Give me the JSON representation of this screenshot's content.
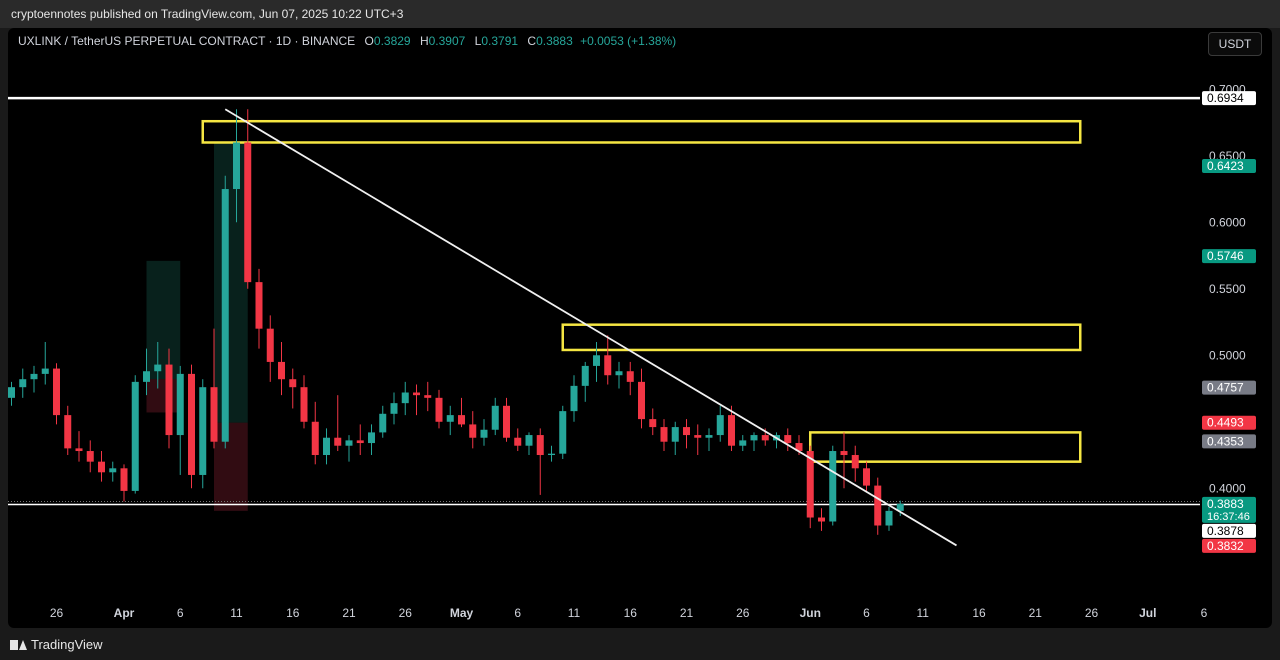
{
  "header": {
    "publish_text": "cryptoennotes published on TradingView.com, Jun 07, 2025 10:22 UTC+3"
  },
  "symbol": {
    "title": "UXLINK / TetherUS PERPETUAL CONTRACT · 1D · BINANCE",
    "o_label": "O",
    "o_value": "0.3829",
    "h_label": "H",
    "h_value": "0.3907",
    "l_label": "L",
    "l_value": "0.3791",
    "c_label": "C",
    "c_value": "0.3883",
    "change": "+0.0053 (+1.38%)"
  },
  "currency_button": "USDT",
  "footer": {
    "brand": "TradingView"
  },
  "colors": {
    "up": "#26a69a",
    "down": "#f23645",
    "zone": "#f5e642",
    "line": "#ffffff",
    "bg": "#000000"
  },
  "chart_data": {
    "type": "candlestick",
    "ylim": [
      0.325,
      0.71
    ],
    "y_axis_ticks": [
      "0.7000",
      "0.6500",
      "0.6000",
      "0.5500",
      "0.5000",
      "0.4000"
    ],
    "x_axis_ticks": [
      "26",
      "Apr",
      "6",
      "11",
      "16",
      "21",
      "26",
      "May",
      "6",
      "11",
      "16",
      "21",
      "26",
      "Jun",
      "6",
      "11",
      "16",
      "21",
      "26",
      "Jul",
      "6"
    ],
    "price_labels": [
      {
        "value": 0.6934,
        "text": "0.6934",
        "style": "white"
      },
      {
        "value": 0.6423,
        "text": "0.6423",
        "style": "green"
      },
      {
        "value": 0.5746,
        "text": "0.5746",
        "style": "green"
      },
      {
        "value": 0.4757,
        "text": "0.4757",
        "style": "gray"
      },
      {
        "value": 0.4493,
        "text": "0.4493",
        "style": "red"
      },
      {
        "value": 0.4353,
        "text": "0.4353",
        "style": "gray"
      },
      {
        "value": 0.3883,
        "text": "0.3883",
        "style": "green",
        "sub": "16:37:46"
      },
      {
        "value": 0.3878,
        "text": "0.3878",
        "style": "white"
      },
      {
        "value": 0.3832,
        "text": "0.3832",
        "style": "red"
      }
    ],
    "horizontal_lines": [
      0.6934,
      0.3878
    ],
    "trendline": {
      "from": [
        "Apr 10",
        0.685
      ],
      "to": [
        "Jun 14",
        0.357
      ]
    },
    "zones": [
      {
        "from": "Apr 8",
        "to": "Jun 25",
        "top": 0.676,
        "bottom": 0.66
      },
      {
        "from": "May 10",
        "to": "Jun 25",
        "top": 0.523,
        "bottom": 0.504
      },
      {
        "from": "Jun 1",
        "to": "Jun 25",
        "top": 0.442,
        "bottom": 0.42
      }
    ],
    "position_boxes": [
      {
        "from": "Apr 3",
        "to": "Apr 6",
        "top": 0.571,
        "mid": 0.482,
        "bottom": 0.457
      },
      {
        "from": "Apr 9",
        "to": "Apr 12",
        "top": 0.66,
        "mid": 0.4493,
        "bottom": 0.383
      }
    ],
    "candles": [
      {
        "o": 0.468,
        "h": 0.48,
        "l": 0.462,
        "c": 0.476
      },
      {
        "o": 0.476,
        "h": 0.49,
        "l": 0.468,
        "c": 0.482
      },
      {
        "o": 0.482,
        "h": 0.492,
        "l": 0.472,
        "c": 0.486
      },
      {
        "o": 0.486,
        "h": 0.51,
        "l": 0.478,
        "c": 0.49
      },
      {
        "o": 0.49,
        "h": 0.494,
        "l": 0.448,
        "c": 0.455
      },
      {
        "o": 0.455,
        "h": 0.462,
        "l": 0.425,
        "c": 0.43
      },
      {
        "o": 0.43,
        "h": 0.443,
        "l": 0.42,
        "c": 0.428
      },
      {
        "o": 0.428,
        "h": 0.436,
        "l": 0.412,
        "c": 0.42
      },
      {
        "o": 0.42,
        "h": 0.428,
        "l": 0.405,
        "c": 0.412
      },
      {
        "o": 0.412,
        "h": 0.42,
        "l": 0.405,
        "c": 0.415
      },
      {
        "o": 0.415,
        "h": 0.418,
        "l": 0.39,
        "c": 0.398
      },
      {
        "o": 0.398,
        "h": 0.485,
        "l": 0.396,
        "c": 0.48
      },
      {
        "o": 0.48,
        "h": 0.505,
        "l": 0.47,
        "c": 0.488
      },
      {
        "o": 0.488,
        "h": 0.51,
        "l": 0.475,
        "c": 0.493
      },
      {
        "o": 0.493,
        "h": 0.505,
        "l": 0.43,
        "c": 0.44
      },
      {
        "o": 0.44,
        "h": 0.492,
        "l": 0.41,
        "c": 0.486
      },
      {
        "o": 0.486,
        "h": 0.493,
        "l": 0.4,
        "c": 0.41
      },
      {
        "o": 0.41,
        "h": 0.482,
        "l": 0.4,
        "c": 0.476
      },
      {
        "o": 0.476,
        "h": 0.52,
        "l": 0.43,
        "c": 0.435
      },
      {
        "o": 0.435,
        "h": 0.635,
        "l": 0.43,
        "c": 0.625
      },
      {
        "o": 0.625,
        "h": 0.685,
        "l": 0.6,
        "c": 0.66
      },
      {
        "o": 0.66,
        "h": 0.685,
        "l": 0.55,
        "c": 0.555
      },
      {
        "o": 0.555,
        "h": 0.565,
        "l": 0.505,
        "c": 0.52
      },
      {
        "o": 0.52,
        "h": 0.53,
        "l": 0.48,
        "c": 0.495
      },
      {
        "o": 0.495,
        "h": 0.51,
        "l": 0.47,
        "c": 0.482
      },
      {
        "o": 0.482,
        "h": 0.49,
        "l": 0.46,
        "c": 0.476
      },
      {
        "o": 0.476,
        "h": 0.485,
        "l": 0.445,
        "c": 0.45
      },
      {
        "o": 0.45,
        "h": 0.465,
        "l": 0.418,
        "c": 0.425
      },
      {
        "o": 0.425,
        "h": 0.445,
        "l": 0.418,
        "c": 0.438
      },
      {
        "o": 0.438,
        "h": 0.47,
        "l": 0.428,
        "c": 0.432
      },
      {
        "o": 0.432,
        "h": 0.44,
        "l": 0.42,
        "c": 0.436
      },
      {
        "o": 0.436,
        "h": 0.448,
        "l": 0.425,
        "c": 0.434
      },
      {
        "o": 0.434,
        "h": 0.448,
        "l": 0.425,
        "c": 0.442
      },
      {
        "o": 0.442,
        "h": 0.462,
        "l": 0.438,
        "c": 0.456
      },
      {
        "o": 0.456,
        "h": 0.472,
        "l": 0.448,
        "c": 0.464
      },
      {
        "o": 0.464,
        "h": 0.48,
        "l": 0.455,
        "c": 0.472
      },
      {
        "o": 0.472,
        "h": 0.478,
        "l": 0.455,
        "c": 0.47
      },
      {
        "o": 0.47,
        "h": 0.48,
        "l": 0.458,
        "c": 0.468
      },
      {
        "o": 0.468,
        "h": 0.474,
        "l": 0.445,
        "c": 0.45
      },
      {
        "o": 0.45,
        "h": 0.462,
        "l": 0.44,
        "c": 0.455
      },
      {
        "o": 0.455,
        "h": 0.468,
        "l": 0.446,
        "c": 0.448
      },
      {
        "o": 0.448,
        "h": 0.458,
        "l": 0.43,
        "c": 0.438
      },
      {
        "o": 0.438,
        "h": 0.452,
        "l": 0.432,
        "c": 0.444
      },
      {
        "o": 0.444,
        "h": 0.468,
        "l": 0.44,
        "c": 0.462
      },
      {
        "o": 0.462,
        "h": 0.468,
        "l": 0.435,
        "c": 0.438
      },
      {
        "o": 0.438,
        "h": 0.445,
        "l": 0.428,
        "c": 0.432
      },
      {
        "o": 0.432,
        "h": 0.442,
        "l": 0.425,
        "c": 0.44
      },
      {
        "o": 0.44,
        "h": 0.445,
        "l": 0.395,
        "c": 0.425
      },
      {
        "o": 0.425,
        "h": 0.432,
        "l": 0.42,
        "c": 0.426
      },
      {
        "o": 0.426,
        "h": 0.462,
        "l": 0.422,
        "c": 0.458
      },
      {
        "o": 0.458,
        "h": 0.485,
        "l": 0.45,
        "c": 0.477
      },
      {
        "o": 0.477,
        "h": 0.495,
        "l": 0.465,
        "c": 0.492
      },
      {
        "o": 0.492,
        "h": 0.51,
        "l": 0.48,
        "c": 0.5
      },
      {
        "o": 0.5,
        "h": 0.515,
        "l": 0.478,
        "c": 0.485
      },
      {
        "o": 0.485,
        "h": 0.495,
        "l": 0.475,
        "c": 0.488
      },
      {
        "o": 0.488,
        "h": 0.495,
        "l": 0.47,
        "c": 0.48
      },
      {
        "o": 0.48,
        "h": 0.49,
        "l": 0.445,
        "c": 0.452
      },
      {
        "o": 0.452,
        "h": 0.46,
        "l": 0.44,
        "c": 0.446
      },
      {
        "o": 0.446,
        "h": 0.452,
        "l": 0.428,
        "c": 0.435
      },
      {
        "o": 0.435,
        "h": 0.45,
        "l": 0.425,
        "c": 0.446
      },
      {
        "o": 0.446,
        "h": 0.452,
        "l": 0.43,
        "c": 0.44
      },
      {
        "o": 0.44,
        "h": 0.448,
        "l": 0.425,
        "c": 0.438
      },
      {
        "o": 0.438,
        "h": 0.445,
        "l": 0.428,
        "c": 0.44
      },
      {
        "o": 0.44,
        "h": 0.462,
        "l": 0.435,
        "c": 0.455
      },
      {
        "o": 0.455,
        "h": 0.462,
        "l": 0.428,
        "c": 0.432
      },
      {
        "o": 0.432,
        "h": 0.44,
        "l": 0.428,
        "c": 0.436
      },
      {
        "o": 0.436,
        "h": 0.442,
        "l": 0.428,
        "c": 0.44
      },
      {
        "o": 0.44,
        "h": 0.445,
        "l": 0.432,
        "c": 0.436
      },
      {
        "o": 0.436,
        "h": 0.442,
        "l": 0.43,
        "c": 0.44
      },
      {
        "o": 0.44,
        "h": 0.445,
        "l": 0.428,
        "c": 0.434
      },
      {
        "o": 0.434,
        "h": 0.44,
        "l": 0.425,
        "c": 0.428
      },
      {
        "o": 0.428,
        "h": 0.432,
        "l": 0.37,
        "c": 0.378
      },
      {
        "o": 0.378,
        "h": 0.385,
        "l": 0.368,
        "c": 0.375
      },
      {
        "o": 0.375,
        "h": 0.432,
        "l": 0.372,
        "c": 0.428
      },
      {
        "o": 0.428,
        "h": 0.442,
        "l": 0.4,
        "c": 0.425
      },
      {
        "o": 0.425,
        "h": 0.432,
        "l": 0.405,
        "c": 0.415
      },
      {
        "o": 0.415,
        "h": 0.42,
        "l": 0.398,
        "c": 0.402
      },
      {
        "o": 0.402,
        "h": 0.408,
        "l": 0.365,
        "c": 0.372
      },
      {
        "o": 0.372,
        "h": 0.386,
        "l": 0.368,
        "c": 0.383
      },
      {
        "o": 0.383,
        "h": 0.3907,
        "l": 0.3791,
        "c": 0.3883
      }
    ]
  }
}
